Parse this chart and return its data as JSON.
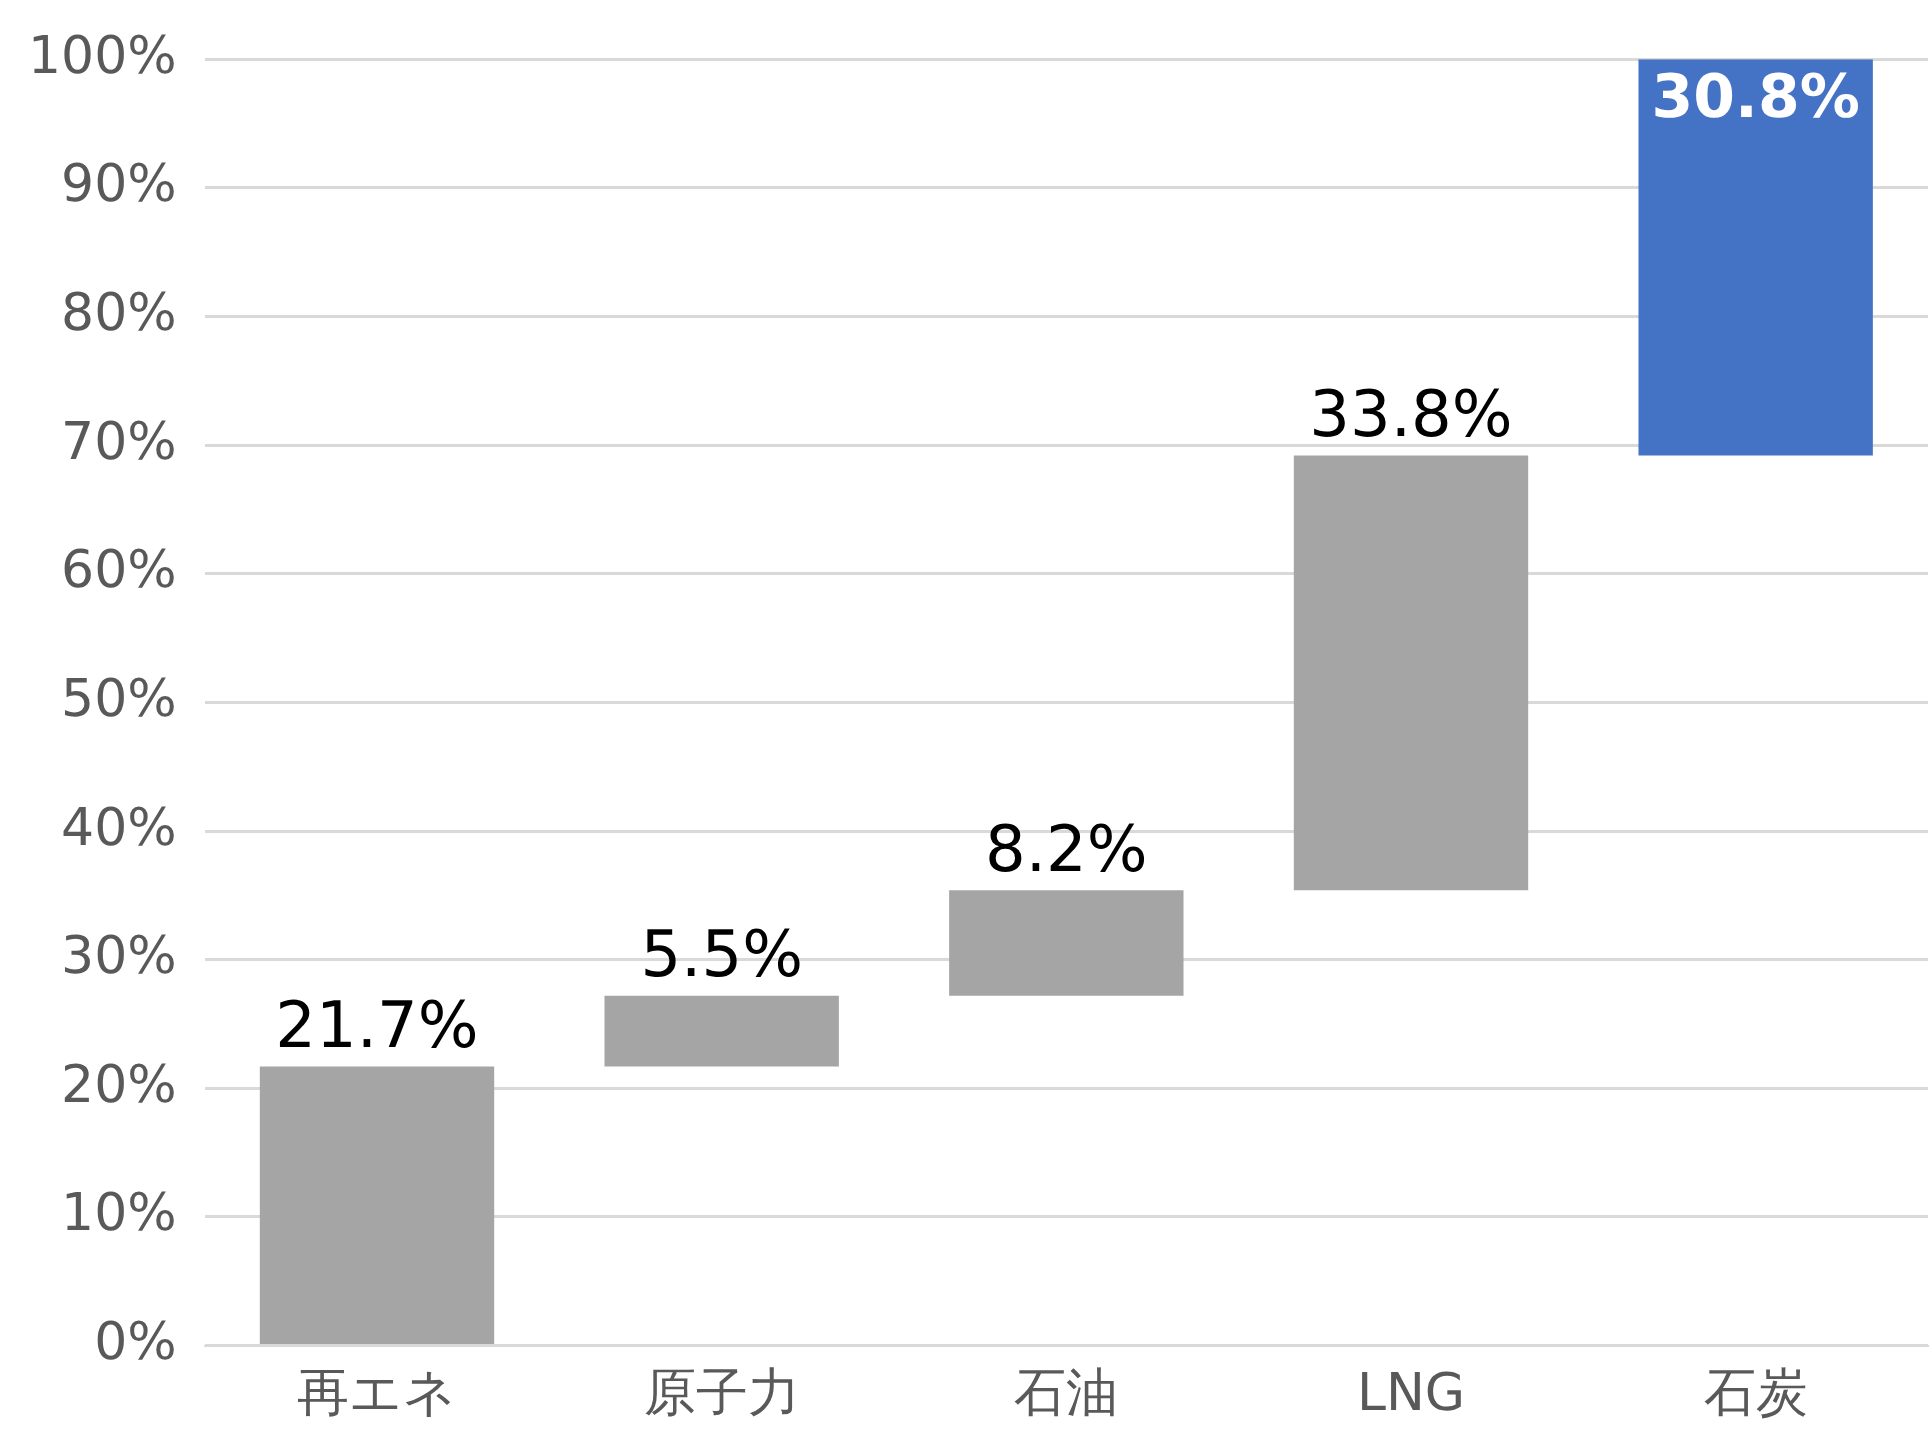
{
  "chart_data": {
    "type": "bar",
    "categories": [
      "再エネ",
      "原子力",
      "石油",
      "LNG",
      "石炭"
    ],
    "values": [
      21.7,
      5.5,
      8.2,
      33.8,
      30.8
    ],
    "base": [
      0,
      21.7,
      27.2,
      35.4,
      69.2
    ],
    "colors": [
      "#a5a5a5",
      "#a5a5a5",
      "#a5a5a5",
      "#a5a5a5",
      "#4472c4"
    ],
    "value_labels": [
      "21.7%",
      "5.5%",
      "8.2%",
      "33.8%",
      "30.8%"
    ],
    "ylim": [
      0,
      100
    ],
    "yticks": [
      {
        "value": 0,
        "label": "0%"
      },
      {
        "value": 10,
        "label": "10%"
      },
      {
        "value": 20,
        "label": "20%"
      },
      {
        "value": 30,
        "label": "30%"
      },
      {
        "value": 40,
        "label": "40%"
      },
      {
        "value": 50,
        "label": "50%"
      },
      {
        "value": 60,
        "label": "60%"
      },
      {
        "value": 70,
        "label": "70%"
      },
      {
        "value": 80,
        "label": "80%"
      },
      {
        "value": 90,
        "label": "90%"
      },
      {
        "value": 100,
        "label": "100%"
      }
    ],
    "grid": "y",
    "legend": false
  }
}
